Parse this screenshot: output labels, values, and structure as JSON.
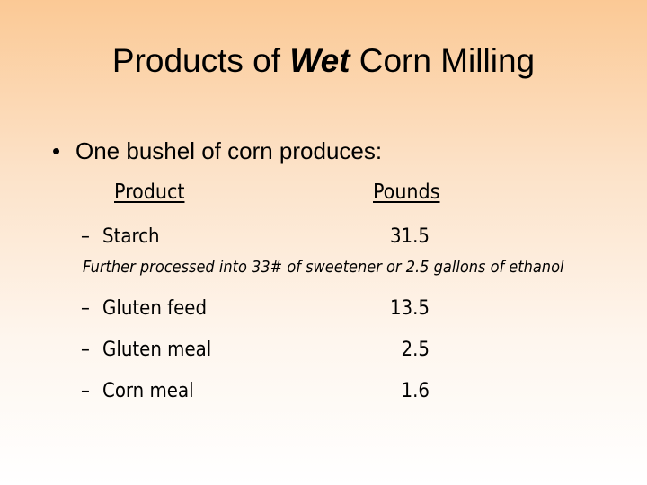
{
  "slide": {
    "title_part1": "Products of ",
    "title_emph": "Wet",
    "title_part2": " Corn Milling",
    "bullet_symbol": "•",
    "bullet_text": "One bushel of corn produces:",
    "column_headers": {
      "product": "Product",
      "pounds": "Pounds"
    },
    "dash": "–",
    "rows": [
      {
        "product": "Starch",
        "pounds": "31.5"
      },
      {
        "product": "Gluten feed",
        "pounds": "13.5"
      },
      {
        "product": "Gluten meal",
        "pounds": "2.5"
      },
      {
        "product": "Corn meal",
        "pounds": "1.6"
      }
    ],
    "starch_note": "Further processed into 33# of sweetener or 2.5 gallons of ethanol"
  }
}
